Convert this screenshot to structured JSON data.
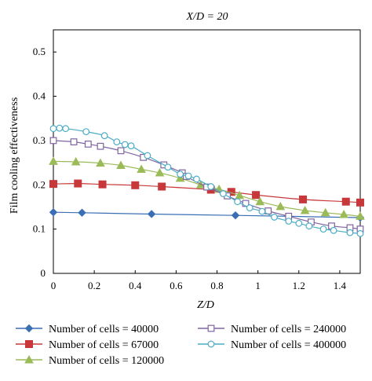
{
  "chart_data": {
    "type": "line",
    "title": "X/D = 20",
    "xlabel": "Z/D",
    "ylabel": "Film cooling effectiveness",
    "xlim": [
      0,
      1.5
    ],
    "ylim": [
      0,
      0.55
    ],
    "xticks": [
      0,
      0.2,
      0.4,
      0.6,
      0.8,
      1,
      1.2,
      1.4
    ],
    "xtick_labels": [
      "0",
      "0.2",
      "0.4",
      "0.6",
      "0.8",
      "1",
      "1.2",
      "1.4"
    ],
    "yticks": [
      0,
      0.1,
      0.2,
      0.3,
      0.4,
      0.5
    ],
    "ytick_labels": [
      "0",
      "0.1",
      "0.2",
      "0.3",
      "0.4",
      "0.5"
    ],
    "grid": false,
    "legend_position": "bottom",
    "series": [
      {
        "name": "Number of cells = 40000",
        "marker": "diamond",
        "color": "#3a6fb5",
        "x": [
          0,
          0.14,
          0.48,
          0.89,
          1.5
        ],
        "y": [
          0.138,
          0.137,
          0.134,
          0.131,
          0.126
        ]
      },
      {
        "name": "Number of cells = 67000",
        "marker": "square",
        "color": "#c8383a",
        "x": [
          0,
          0.12,
          0.24,
          0.4,
          0.53,
          0.77,
          0.87,
          0.99,
          1.22,
          1.43,
          1.5
        ],
        "y": [
          0.202,
          0.203,
          0.201,
          0.199,
          0.196,
          0.189,
          0.184,
          0.177,
          0.167,
          0.162,
          0.16
        ]
      },
      {
        "name": "Number of cells = 120000",
        "marker": "triangle",
        "color": "#9bbb59",
        "x": [
          0,
          0.11,
          0.23,
          0.33,
          0.43,
          0.52,
          0.62,
          0.72,
          0.81,
          0.91,
          1.01,
          1.11,
          1.23,
          1.33,
          1.42,
          1.5
        ],
        "y": [
          0.253,
          0.252,
          0.249,
          0.244,
          0.235,
          0.227,
          0.215,
          0.2,
          0.19,
          0.176,
          0.162,
          0.151,
          0.142,
          0.137,
          0.133,
          0.129
        ]
      },
      {
        "name": "Number of cells = 240000",
        "marker": "open-square",
        "color": "#8064a2",
        "x": [
          0,
          0.1,
          0.17,
          0.23,
          0.33,
          0.44,
          0.54,
          0.63,
          0.65,
          0.75,
          0.85,
          0.94,
          1.05,
          1.15,
          1.26,
          1.36,
          1.45,
          1.5
        ],
        "y": [
          0.3,
          0.297,
          0.292,
          0.287,
          0.277,
          0.262,
          0.245,
          0.227,
          0.219,
          0.195,
          0.175,
          0.158,
          0.141,
          0.129,
          0.116,
          0.107,
          0.103,
          0.1
        ]
      },
      {
        "name": "Number of cells = 400000",
        "marker": "open-circle",
        "color": "#4bacc6",
        "x": [
          0,
          0.03,
          0.06,
          0.16,
          0.25,
          0.31,
          0.35,
          0.38,
          0.46,
          0.56,
          0.62,
          0.66,
          0.7,
          0.77,
          0.83,
          0.9,
          0.96,
          1.02,
          1.08,
          1.15,
          1.2,
          1.25,
          1.32,
          1.37,
          1.45,
          1.5
        ],
        "y": [
          0.327,
          0.328,
          0.327,
          0.32,
          0.311,
          0.297,
          0.291,
          0.288,
          0.266,
          0.24,
          0.224,
          0.22,
          0.213,
          0.196,
          0.18,
          0.162,
          0.148,
          0.14,
          0.127,
          0.118,
          0.113,
          0.107,
          0.1,
          0.097,
          0.092,
          0.09
        ]
      }
    ]
  }
}
